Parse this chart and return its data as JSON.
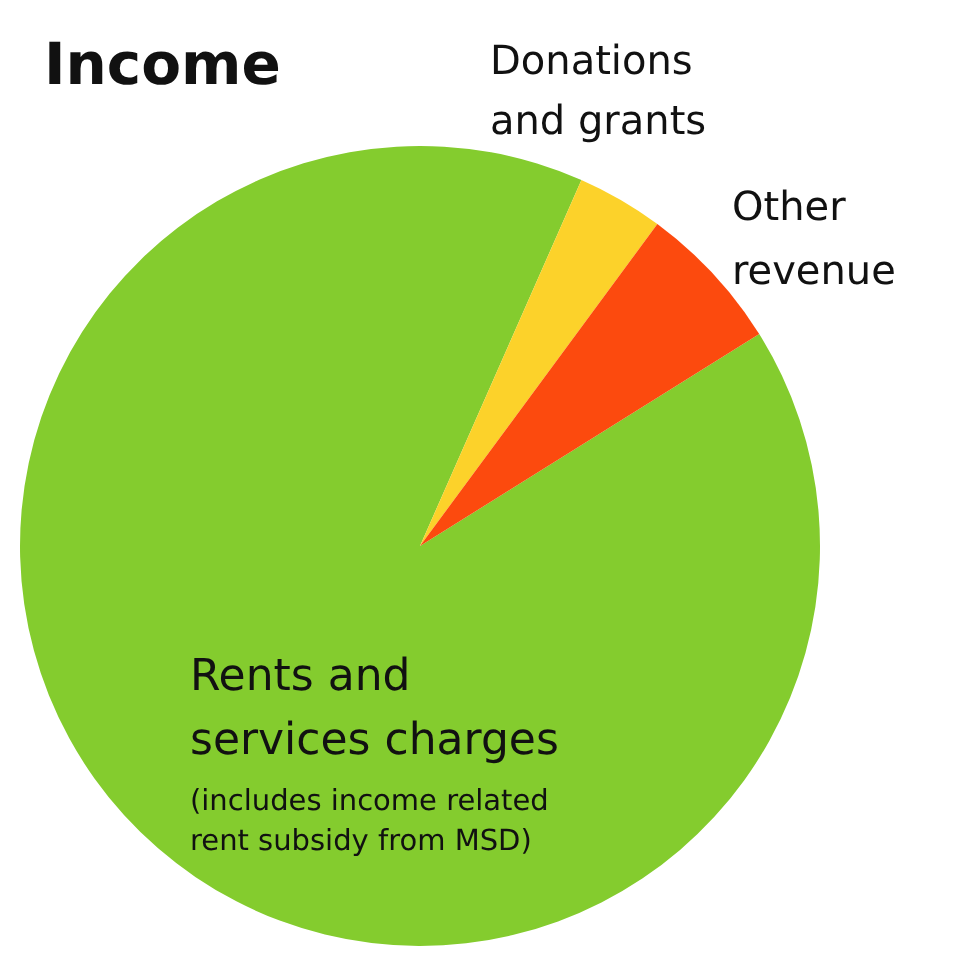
{
  "chart_data": {
    "type": "pie",
    "title": "Income",
    "categories": [
      "Rents and services charges",
      "Donations and grants",
      "Other revenue"
    ],
    "values": [
      90.5,
      3.5,
      6
    ],
    "colors": [
      "#84cc2e",
      "#fcd22a",
      "#fc4a0e"
    ],
    "annotations": [
      "(includes income related rent subsidy from MSD)"
    ]
  }
}
